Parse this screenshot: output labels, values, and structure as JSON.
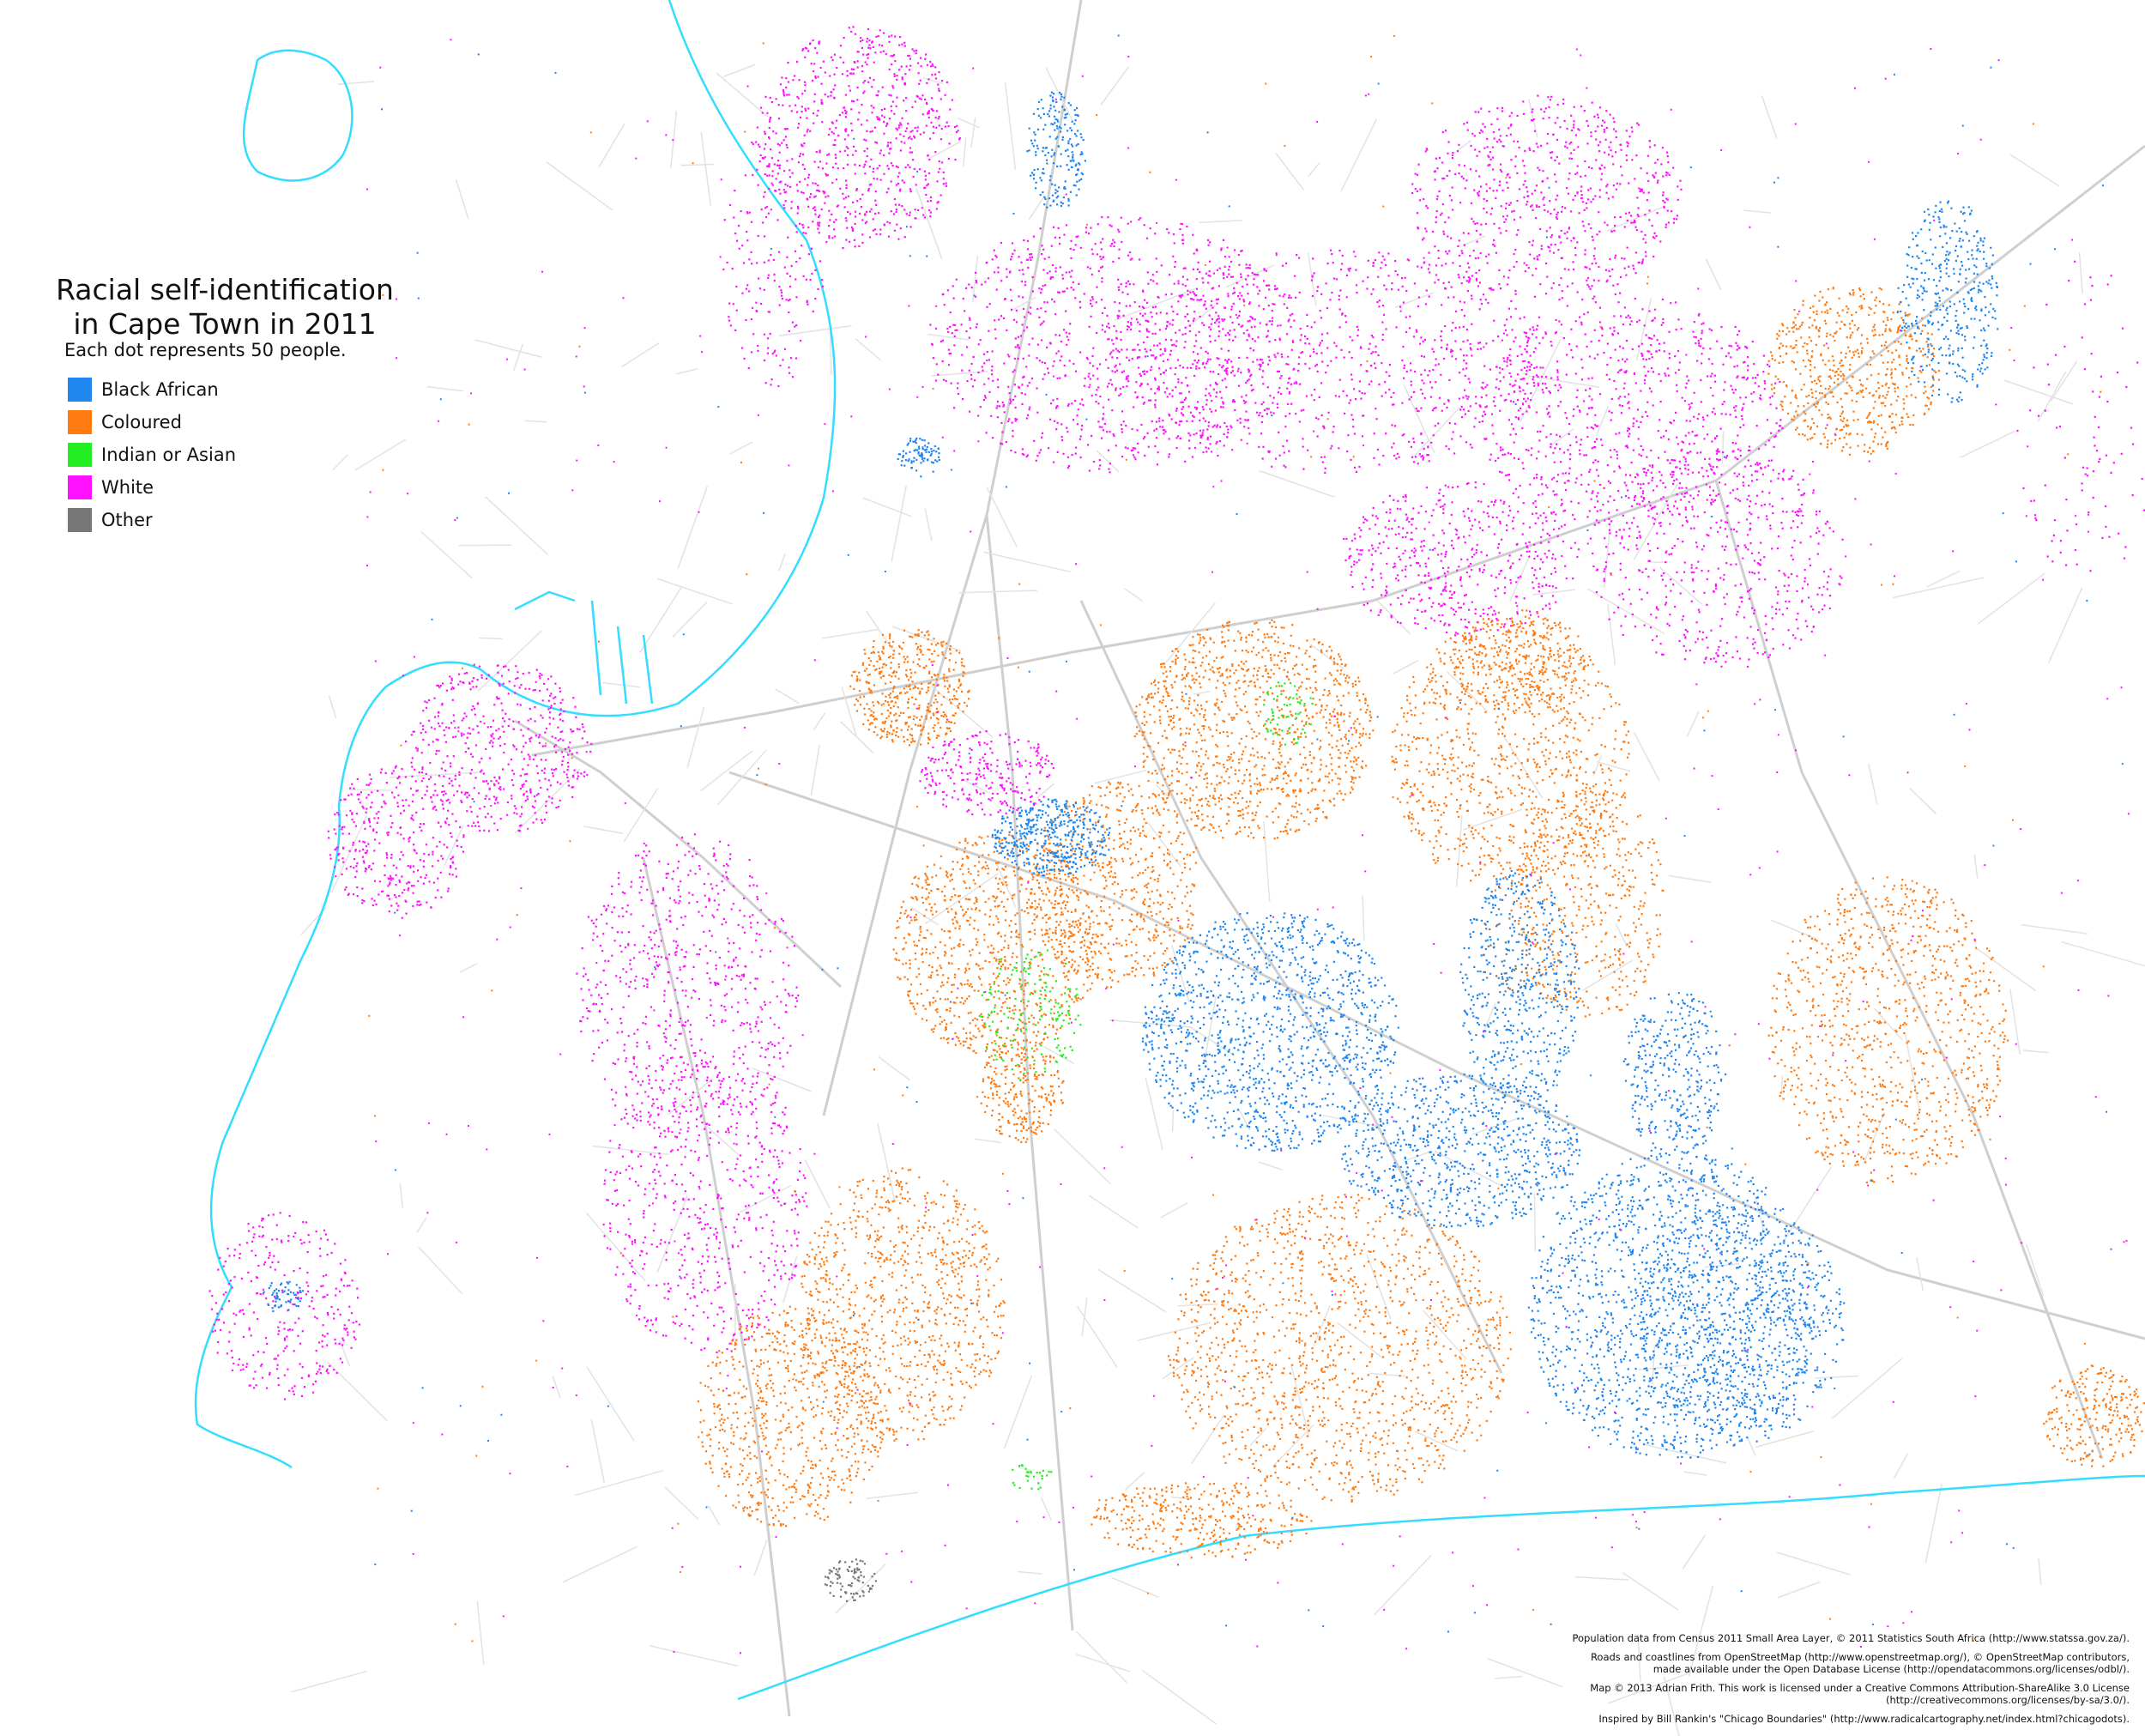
{
  "map": {
    "title_line1": "Racial self-identification",
    "title_line2": "in Cape Town in 2011",
    "subtitle": "Each dot represents 50 people.",
    "legend": [
      {
        "label": "Black African",
        "color": "#1f86ef"
      },
      {
        "label": "Coloured",
        "color": "#ff7a10"
      },
      {
        "label": "Indian or Asian",
        "color": "#22ee22"
      },
      {
        "label": "White",
        "color": "#ff11ff"
      },
      {
        "label": "Other",
        "color": "#777777"
      }
    ],
    "attribution": {
      "line1": "Population data from Census 2011 Small Area Layer, © 2011 Statistics South Africa (http://www.statssa.gov.za/).",
      "line2": "Roads and coastlines from OpenStreetMap (http://www.openstreetmap.org/), © OpenStreetMap contributors,\nmade available under the Open Database License (http://opendatacommons.org/licenses/odbl/).",
      "line3": "Map © 2013 Adrian Frith. This work is licensed under a Creative Commons Attribution-ShareAlike 3.0 License\n(http://creativecommons.org/licenses/by-sa/3.0/).",
      "line4": "Inspired by Bill Rankin's \"Chicago Boundaries\" (http://www.radicalcartography.net/index.html?chicagodots)."
    },
    "colors": {
      "coastline": "#33ddff",
      "roads": "#cfcfcf",
      "background": "#ffffff"
    }
  }
}
